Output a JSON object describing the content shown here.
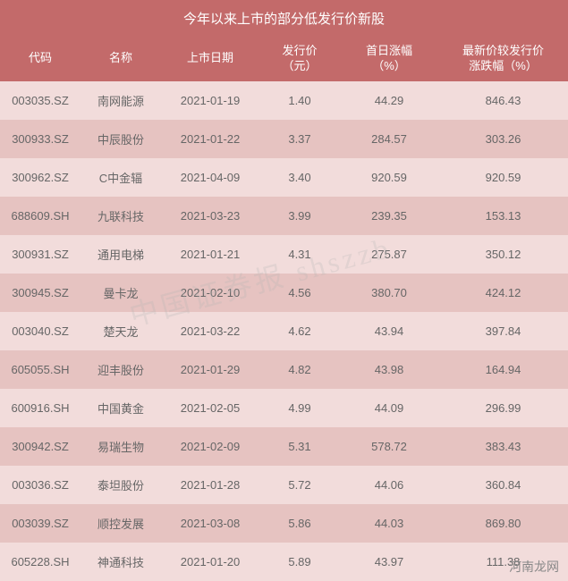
{
  "table": {
    "title": "今年以来上市的部分低发行价新股",
    "columns": [
      {
        "label": "代码",
        "class": "col-code"
      },
      {
        "label": "名称",
        "class": "col-name"
      },
      {
        "label": "上市日期",
        "class": "col-date"
      },
      {
        "label": "发行价\n（元）",
        "class": "col-price"
      },
      {
        "label": "首日涨幅\n（%）",
        "class": "col-first"
      },
      {
        "label": "最新价较发行价\n涨跌幅（%）",
        "class": "col-change"
      }
    ],
    "rows": [
      [
        "003035.SZ",
        "南网能源",
        "2021-01-19",
        "1.40",
        "44.29",
        "846.43"
      ],
      [
        "300933.SZ",
        "中辰股份",
        "2021-01-22",
        "3.37",
        "284.57",
        "303.26"
      ],
      [
        "300962.SZ",
        "C中金辐",
        "2021-04-09",
        "3.40",
        "920.59",
        "920.59"
      ],
      [
        "688609.SH",
        "九联科技",
        "2021-03-23",
        "3.99",
        "239.35",
        "153.13"
      ],
      [
        "300931.SZ",
        "通用电梯",
        "2021-01-21",
        "4.31",
        "275.87",
        "350.12"
      ],
      [
        "300945.SZ",
        "曼卡龙",
        "2021-02-10",
        "4.56",
        "380.70",
        "424.12"
      ],
      [
        "003040.SZ",
        "楚天龙",
        "2021-03-22",
        "4.62",
        "43.94",
        "397.84"
      ],
      [
        "605055.SH",
        "迎丰股份",
        "2021-01-29",
        "4.82",
        "43.98",
        "164.94"
      ],
      [
        "600916.SH",
        "中国黄金",
        "2021-02-05",
        "4.99",
        "44.09",
        "296.99"
      ],
      [
        "300942.SZ",
        "易瑞生物",
        "2021-02-09",
        "5.31",
        "578.72",
        "383.43"
      ],
      [
        "003036.SZ",
        "泰坦股份",
        "2021-01-28",
        "5.72",
        "44.06",
        "360.84"
      ],
      [
        "003039.SZ",
        "顺控发展",
        "2021-03-08",
        "5.86",
        "44.03",
        "869.80"
      ],
      [
        "605228.SH",
        "神通科技",
        "2021-01-20",
        "5.89",
        "43.97",
        "111.38"
      ]
    ],
    "title_bg_color": "#c36a6a",
    "header_bg_color": "#c36a6a",
    "header_text_color": "#ffffff",
    "row_even_bg": "#f2dcdb",
    "row_odd_bg": "#e6c3c1",
    "cell_text_color": "#666666",
    "title_fontsize": 15,
    "header_fontsize": 13,
    "cell_fontsize": 13
  },
  "watermark": {
    "text": "中国证券报 shszzb",
    "color": "rgba(180,180,180,0.25)",
    "fontsize": 32,
    "rotation_deg": -15
  },
  "site_label": {
    "text": "河南龙网",
    "color": "#888888",
    "fontsize": 14
  }
}
